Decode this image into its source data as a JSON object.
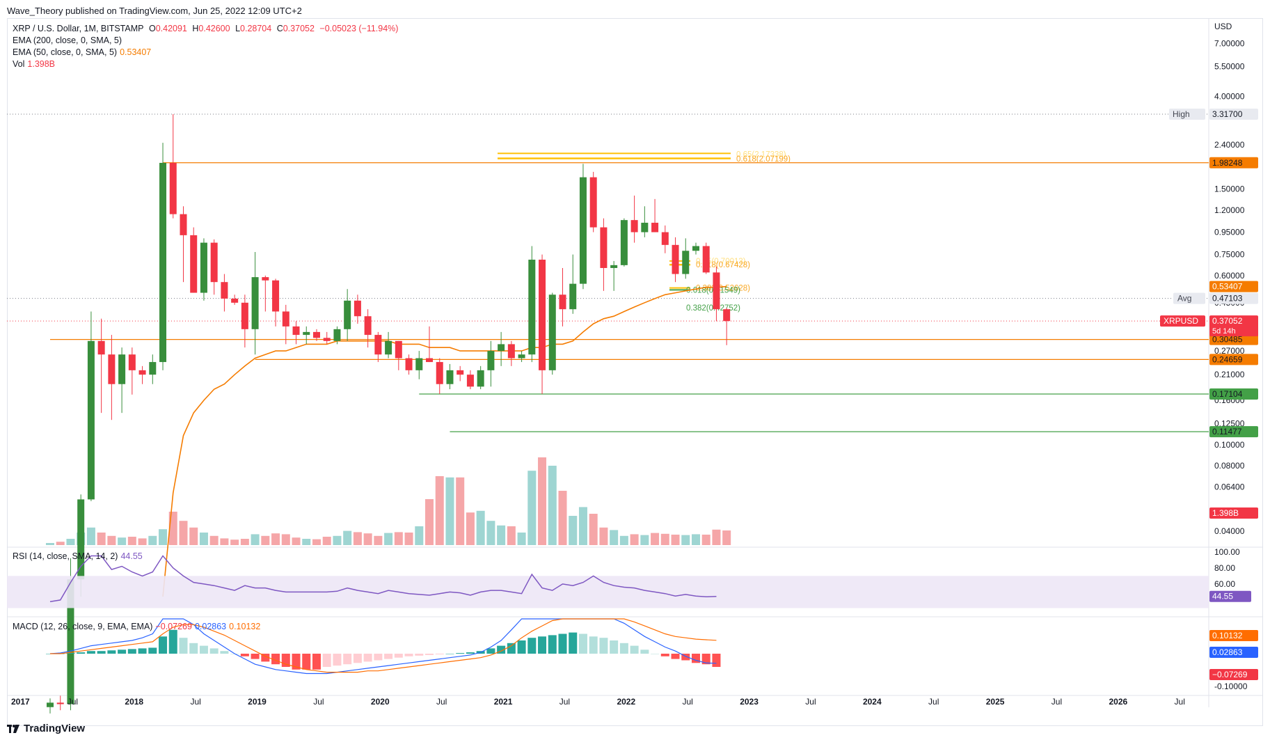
{
  "header": {
    "published": "Wave_Theory published on TradingView.com, Jun 25, 2022 12:09 UTC+2"
  },
  "legend": {
    "main": {
      "title": "XRP / U.S. Dollar, 1M, BITSTAMP",
      "o_label": "O",
      "o": "0.42091",
      "h_label": "H",
      "h": "0.42600",
      "l_label": "L",
      "l": "0.28704",
      "c_label": "C",
      "c": "0.37052",
      "chg": "−0.05023 (−11.94%)"
    },
    "ema200": {
      "label": "EMA (200, close, 0, SMA, 5)",
      "value": ""
    },
    "ema50": {
      "label": "EMA (50, close, 0, SMA, 5)",
      "value": "0.53407"
    },
    "vol": {
      "label": "Vol",
      "value": "1.398B"
    },
    "rsi": {
      "label": "RSI (14, close, SMA, 14, 2)",
      "value": "44.55"
    },
    "macd": {
      "label": "MACD (12, 26, close, 9, EMA, EMA)",
      "v1": "−0.07269",
      "v2": "0.02863",
      "v3": "0.10132"
    }
  },
  "footer": {
    "brand": "TradingView"
  },
  "colors": {
    "up": "#388e3c",
    "down": "#f23645",
    "ema50": "#f57c00",
    "level_orange": "#f57c00",
    "level_green": "#43a047",
    "fib_gold": "#ffc107",
    "rsi": "#7e57c2",
    "macd": "#2962ff",
    "signal": "#ff6d00",
    "vol_up": "#9ed5d2",
    "vol_down": "#f5a6a8"
  },
  "chart_data": {
    "type": "candlestick",
    "symbol": "XRPUSD",
    "interval": "1M",
    "y_scale": "log",
    "currency_label": "USD",
    "price_ticks": [
      "7.00000",
      "5.50000",
      "4.00000",
      "2.40000",
      "1.50000",
      "1.20000",
      "0.95000",
      "0.75000",
      "0.60000",
      "0.45000",
      "0.27000",
      "0.21000",
      "0.16000",
      "0.12500",
      "0.10000",
      "0.08000",
      "0.06400",
      "0.04000"
    ],
    "x_ticks": [
      "2017",
      "Jul",
      "2018",
      "Jul",
      "2019",
      "Jul",
      "2020",
      "Jul",
      "2021",
      "Jul",
      "2022",
      "Jul",
      "2023",
      "Jul",
      "2024",
      "Jul",
      "2025",
      "Jul",
      "2026",
      "Jul"
    ],
    "candles": [
      {
        "o": 0.0062,
        "h": 0.0068,
        "l": 0.0058,
        "c": 0.0065
      },
      {
        "o": 0.0065,
        "h": 0.007,
        "l": 0.006,
        "c": 0.0064
      },
      {
        "o": 0.0064,
        "h": 0.03,
        "l": 0.006,
        "c": 0.024
      },
      {
        "o": 0.024,
        "h": 0.059,
        "l": 0.02,
        "c": 0.056
      },
      {
        "o": 0.056,
        "h": 0.41,
        "l": 0.055,
        "c": 0.3
      },
      {
        "o": 0.3,
        "h": 0.38,
        "l": 0.14,
        "c": 0.26
      },
      {
        "o": 0.26,
        "h": 0.32,
        "l": 0.13,
        "c": 0.19
      },
      {
        "o": 0.19,
        "h": 0.28,
        "l": 0.14,
        "c": 0.26
      },
      {
        "o": 0.26,
        "h": 0.28,
        "l": 0.17,
        "c": 0.22
      },
      {
        "o": 0.22,
        "h": 0.23,
        "l": 0.19,
        "c": 0.21
      },
      {
        "o": 0.21,
        "h": 0.26,
        "l": 0.19,
        "c": 0.24
      },
      {
        "o": 0.24,
        "h": 2.45,
        "l": 0.22,
        "c": 1.98
      },
      {
        "o": 1.98,
        "h": 3.317,
        "l": 1.1,
        "c": 1.15
      },
      {
        "o": 1.15,
        "h": 1.25,
        "l": 0.56,
        "c": 0.92
      },
      {
        "o": 0.92,
        "h": 1.0,
        "l": 0.5,
        "c": 0.5
      },
      {
        "o": 0.5,
        "h": 0.89,
        "l": 0.46,
        "c": 0.85
      },
      {
        "o": 0.85,
        "h": 0.88,
        "l": 0.49,
        "c": 0.56
      },
      {
        "o": 0.56,
        "h": 0.61,
        "l": 0.41,
        "c": 0.47
      },
      {
        "o": 0.47,
        "h": 0.49,
        "l": 0.44,
        "c": 0.45
      },
      {
        "o": 0.45,
        "h": 0.49,
        "l": 0.28,
        "c": 0.34
      },
      {
        "o": 0.34,
        "h": 0.77,
        "l": 0.26,
        "c": 0.59
      },
      {
        "o": 0.59,
        "h": 0.6,
        "l": 0.41,
        "c": 0.57
      },
      {
        "o": 0.57,
        "h": 0.58,
        "l": 0.35,
        "c": 0.41
      },
      {
        "o": 0.41,
        "h": 0.44,
        "l": 0.29,
        "c": 0.35
      },
      {
        "o": 0.35,
        "h": 0.37,
        "l": 0.29,
        "c": 0.32
      },
      {
        "o": 0.32,
        "h": 0.35,
        "l": 0.29,
        "c": 0.33
      },
      {
        "o": 0.33,
        "h": 0.34,
        "l": 0.3,
        "c": 0.31
      },
      {
        "o": 0.31,
        "h": 0.33,
        "l": 0.29,
        "c": 0.3
      },
      {
        "o": 0.3,
        "h": 0.35,
        "l": 0.29,
        "c": 0.34
      },
      {
        "o": 0.34,
        "h": 0.52,
        "l": 0.3,
        "c": 0.46
      },
      {
        "o": 0.46,
        "h": 0.49,
        "l": 0.36,
        "c": 0.39
      },
      {
        "o": 0.39,
        "h": 0.42,
        "l": 0.28,
        "c": 0.32
      },
      {
        "o": 0.32,
        "h": 0.33,
        "l": 0.24,
        "c": 0.26
      },
      {
        "o": 0.26,
        "h": 0.33,
        "l": 0.25,
        "c": 0.3
      },
      {
        "o": 0.3,
        "h": 0.3,
        "l": 0.22,
        "c": 0.25
      },
      {
        "o": 0.25,
        "h": 0.26,
        "l": 0.21,
        "c": 0.22
      },
      {
        "o": 0.22,
        "h": 0.27,
        "l": 0.2,
        "c": 0.25
      },
      {
        "o": 0.25,
        "h": 0.35,
        "l": 0.24,
        "c": 0.24
      },
      {
        "o": 0.24,
        "h": 0.25,
        "l": 0.171,
        "c": 0.19
      },
      {
        "o": 0.19,
        "h": 0.235,
        "l": 0.18,
        "c": 0.22
      },
      {
        "o": 0.22,
        "h": 0.23,
        "l": 0.196,
        "c": 0.21
      },
      {
        "o": 0.21,
        "h": 0.22,
        "l": 0.18,
        "c": 0.185
      },
      {
        "o": 0.185,
        "h": 0.23,
        "l": 0.18,
        "c": 0.22
      },
      {
        "o": 0.22,
        "h": 0.3,
        "l": 0.185,
        "c": 0.27
      },
      {
        "o": 0.27,
        "h": 0.33,
        "l": 0.23,
        "c": 0.29
      },
      {
        "o": 0.29,
        "h": 0.3,
        "l": 0.23,
        "c": 0.25
      },
      {
        "o": 0.25,
        "h": 0.27,
        "l": 0.24,
        "c": 0.26
      },
      {
        "o": 0.26,
        "h": 0.82,
        "l": 0.24,
        "c": 0.71
      },
      {
        "o": 0.71,
        "h": 0.75,
        "l": 0.171,
        "c": 0.22
      },
      {
        "o": 0.22,
        "h": 0.5,
        "l": 0.21,
        "c": 0.49
      },
      {
        "o": 0.49,
        "h": 0.65,
        "l": 0.35,
        "c": 0.42
      },
      {
        "o": 0.42,
        "h": 0.75,
        "l": 0.4,
        "c": 0.55
      },
      {
        "o": 0.55,
        "h": 1.96,
        "l": 0.52,
        "c": 1.7
      },
      {
        "o": 1.7,
        "h": 1.8,
        "l": 0.95,
        "c": 1.0
      },
      {
        "o": 1.0,
        "h": 1.1,
        "l": 0.51,
        "c": 0.65
      },
      {
        "o": 0.65,
        "h": 0.7,
        "l": 0.51,
        "c": 0.67
      },
      {
        "o": 0.67,
        "h": 1.1,
        "l": 0.66,
        "c": 1.08
      },
      {
        "o": 1.08,
        "h": 1.4,
        "l": 0.85,
        "c": 0.95
      },
      {
        "o": 0.95,
        "h": 1.25,
        "l": 0.9,
        "c": 1.05
      },
      {
        "o": 1.05,
        "h": 1.35,
        "l": 0.95,
        "c": 0.95
      },
      {
        "o": 0.95,
        "h": 1.02,
        "l": 0.76,
        "c": 0.83
      },
      {
        "o": 0.83,
        "h": 0.9,
        "l": 0.56,
        "c": 0.61
      },
      {
        "o": 0.61,
        "h": 0.89,
        "l": 0.58,
        "c": 0.78
      },
      {
        "o": 0.78,
        "h": 0.85,
        "l": 0.75,
        "c": 0.82
      },
      {
        "o": 0.82,
        "h": 0.85,
        "l": 0.61,
        "c": 0.62
      },
      {
        "o": 0.62,
        "h": 0.66,
        "l": 0.37,
        "c": 0.42
      },
      {
        "o": 0.42,
        "h": 0.426,
        "l": 0.287,
        "c": 0.3705
      }
    ],
    "ema50": [
      null,
      null,
      null,
      null,
      null,
      null,
      null,
      null,
      null,
      null,
      null,
      0.02,
      0.06,
      0.11,
      0.14,
      0.16,
      0.18,
      0.19,
      0.21,
      0.23,
      0.25,
      0.26,
      0.27,
      0.27,
      0.28,
      0.29,
      0.29,
      0.29,
      0.3,
      0.3,
      0.3,
      0.3,
      0.3,
      0.3,
      0.29,
      0.29,
      0.29,
      0.28,
      0.28,
      0.28,
      0.27,
      0.27,
      0.27,
      0.27,
      0.27,
      0.27,
      0.27,
      0.28,
      0.28,
      0.29,
      0.29,
      0.3,
      0.33,
      0.36,
      0.38,
      0.39,
      0.41,
      0.43,
      0.45,
      0.47,
      0.49,
      0.5,
      0.51,
      0.52,
      0.53,
      0.53,
      0.534
    ],
    "volume": [
      0.05,
      0.08,
      0.15,
      0.3,
      0.42,
      0.3,
      0.22,
      0.18,
      0.2,
      0.16,
      0.22,
      0.38,
      0.8,
      0.58,
      0.42,
      0.3,
      0.22,
      0.16,
      0.13,
      0.15,
      0.26,
      0.22,
      0.28,
      0.26,
      0.18,
      0.15,
      0.14,
      0.2,
      0.22,
      0.34,
      0.31,
      0.28,
      0.22,
      0.29,
      0.31,
      0.3,
      0.45,
      1.1,
      1.65,
      1.62,
      1.62,
      0.78,
      0.82,
      0.58,
      0.47,
      0.45,
      0.3,
      1.78,
      2.1,
      1.9,
      1.3,
      0.7,
      0.91,
      0.75,
      0.42,
      0.36,
      0.22,
      0.26,
      0.24,
      0.29,
      0.27,
      0.25,
      0.24,
      0.26,
      0.25,
      0.37,
      0.35
    ],
    "volume_last_label": "1.398B",
    "levels": [
      {
        "label": "1.98248",
        "price": 1.98248,
        "color": "orange"
      },
      {
        "label": "0.30485",
        "price": 0.30485,
        "color": "orange"
      },
      {
        "label": "0.24659",
        "price": 0.24659,
        "color": "orange"
      },
      {
        "label": "0.17104",
        "price": 0.17104,
        "color": "green"
      },
      {
        "label": "0.11477",
        "price": 0.11477,
        "color": "green"
      }
    ],
    "annotations": [
      {
        "text": "0.618(2.07199)",
        "price": 2.07199,
        "color": "gold"
      },
      {
        "text": "0.65(2.17338)",
        "price": 2.17338,
        "color": "gold"
      },
      {
        "text": "0.618(0.67428)",
        "price": 0.67428,
        "color": "gold"
      },
      {
        "text": "0.65(0.70013)",
        "price": 0.70013,
        "color": "gold"
      },
      {
        "text": "0.382(0.52628)",
        "price": 0.52628,
        "color": "gold"
      },
      {
        "text": "0.618(0.51549)",
        "price": 0.51549,
        "color": "green"
      },
      {
        "text": "0.382(0.42752)",
        "price": 0.42752,
        "color": "green"
      }
    ],
    "price_labels": {
      "high": {
        "tag": "High",
        "value": "3.31700"
      },
      "ema50": {
        "value": "0.53407"
      },
      "avg": {
        "tag": "Avg",
        "value": "0.47103"
      },
      "last": {
        "tag": "XRPUSD",
        "value": "0.37052",
        "countdown": "5d 14h"
      }
    },
    "rsi": {
      "ticks": [
        "100.00",
        "80.00",
        "60.00"
      ],
      "band": [
        30,
        70
      ],
      "values": [
        38,
        40,
        62,
        82,
        95,
        95,
        78,
        82,
        75,
        70,
        75,
        95,
        80,
        70,
        62,
        60,
        58,
        55,
        52,
        58,
        55,
        55,
        52,
        50,
        50,
        50,
        50,
        50,
        51,
        55,
        52,
        50,
        48,
        52,
        50,
        48,
        47,
        46,
        48,
        50,
        49,
        46,
        50,
        52,
        52,
        50,
        48,
        72,
        55,
        52,
        60,
        58,
        62,
        70,
        62,
        58,
        56,
        55,
        52,
        50,
        48,
        45,
        47,
        45,
        44,
        44.55
      ],
      "last": "44.55"
    },
    "macd": {
      "ticks": [
        "-0.10000"
      ],
      "hist": [
        0,
        0,
        0.005,
        0.01,
        0.02,
        0.02,
        0.025,
        0.03,
        0.035,
        0.04,
        0.045,
        0.13,
        0.18,
        0.12,
        0.08,
        0.06,
        0.04,
        0.02,
        0.0,
        -0.02,
        -0.04,
        -0.06,
        -0.08,
        -0.1,
        -0.12,
        -0.12,
        -0.12,
        -0.1,
        -0.09,
        -0.08,
        -0.07,
        -0.06,
        -0.05,
        -0.04,
        -0.03,
        -0.02,
        -0.015,
        -0.01,
        -0.005,
        0,
        0.005,
        0.01,
        0.02,
        0.04,
        0.06,
        0.08,
        0.1,
        0.12,
        0.13,
        0.14,
        0.15,
        0.16,
        0.15,
        0.13,
        0.12,
        0.1,
        0.08,
        0.06,
        0.03,
        0.0,
        -0.02,
        -0.04,
        -0.05,
        -0.07,
        -0.08,
        -0.1
      ],
      "macd_line": [
        0,
        0.005,
        0.02,
        0.04,
        0.06,
        0.07,
        0.08,
        0.09,
        0.1,
        0.12,
        0.15,
        0.45,
        0.4,
        0.3,
        0.22,
        0.15,
        0.1,
        0.05,
        0.0,
        -0.04,
        -0.08,
        -0.1,
        -0.12,
        -0.13,
        -0.14,
        -0.15,
        -0.15,
        -0.15,
        -0.14,
        -0.13,
        -0.12,
        -0.11,
        -0.1,
        -0.09,
        -0.08,
        -0.07,
        -0.06,
        -0.05,
        -0.04,
        -0.03,
        -0.02,
        -0.01,
        0.01,
        0.05,
        0.1,
        0.18,
        0.3,
        0.34,
        0.36,
        0.38,
        0.39,
        0.38,
        0.36,
        0.33,
        0.3,
        0.27,
        0.23,
        0.18,
        0.13,
        0.09,
        0.05,
        0.02,
        -0.02,
        -0.05,
        -0.07,
        -0.0727
      ],
      "signal_line": [
        0,
        0,
        0.01,
        0.02,
        0.03,
        0.04,
        0.05,
        0.06,
        0.07,
        0.08,
        0.09,
        0.15,
        0.2,
        0.22,
        0.22,
        0.2,
        0.17,
        0.14,
        0.1,
        0.06,
        0.02,
        -0.02,
        -0.05,
        -0.08,
        -0.1,
        -0.12,
        -0.13,
        -0.14,
        -0.14,
        -0.14,
        -0.14,
        -0.13,
        -0.13,
        -0.12,
        -0.11,
        -0.1,
        -0.09,
        -0.08,
        -0.07,
        -0.06,
        -0.05,
        -0.04,
        -0.03,
        -0.01,
        0.02,
        0.06,
        0.12,
        0.17,
        0.21,
        0.25,
        0.28,
        0.3,
        0.31,
        0.31,
        0.3,
        0.29,
        0.27,
        0.24,
        0.21,
        0.18,
        0.15,
        0.13,
        0.12,
        0.11,
        0.105,
        0.1013
      ],
      "labels": {
        "signal": "0.10132",
        "macd": "0.02863",
        "hist": "−0.07269"
      }
    }
  }
}
